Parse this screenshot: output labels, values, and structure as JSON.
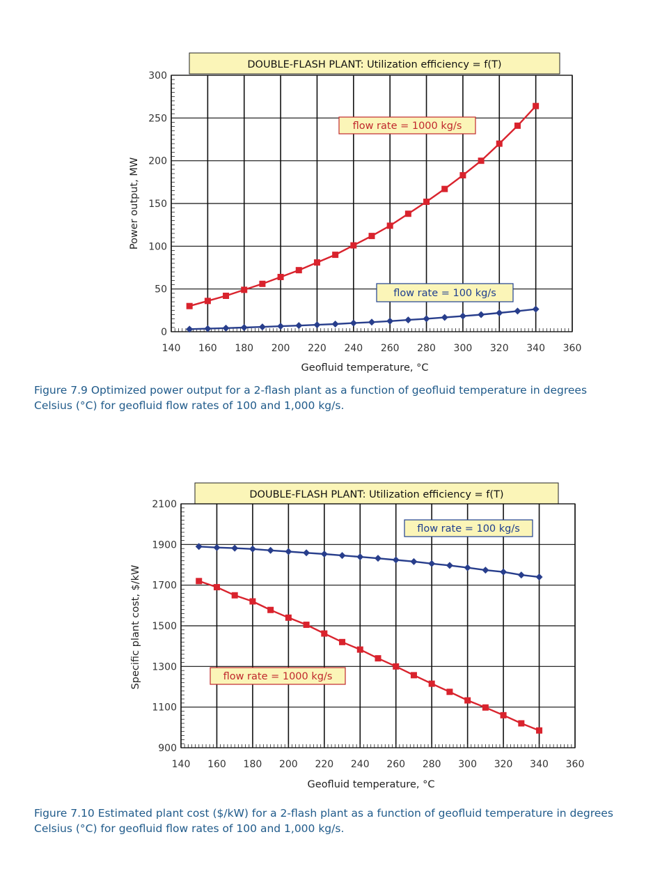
{
  "colors": {
    "red_series": "#d9232d",
    "blue_series": "#283e8c",
    "title_box_fill": "#fbf5b8",
    "label_box_fill": "#fbf5b8",
    "grid": "#111111",
    "caption": "#1f5a8a"
  },
  "chart_data": [
    {
      "type": "line",
      "title": "DOUBLE-FLASH PLANT: Utilization efficiency = f(T)",
      "xlabel": "Geofluid temperature, °C",
      "ylabel": "Power output, MW",
      "xlim": [
        140,
        360
      ],
      "ylim": [
        0,
        300
      ],
      "xticks": [
        140,
        160,
        180,
        200,
        220,
        240,
        260,
        280,
        300,
        320,
        340,
        360
      ],
      "yticks": [
        0,
        50,
        100,
        150,
        200,
        250,
        300
      ],
      "grid": true,
      "series": [
        {
          "name": "flow rate = 1000 kg/s",
          "marker": "square",
          "color": "#d9232d",
          "x": [
            150,
            160,
            170,
            180,
            190,
            200,
            210,
            220,
            230,
            240,
            250,
            260,
            270,
            280,
            290,
            300,
            310,
            320,
            330,
            340
          ],
          "y": [
            30,
            36,
            42,
            49,
            56,
            64,
            72,
            81,
            90,
            101,
            112,
            124,
            138,
            152,
            167,
            183,
            200,
            220,
            241,
            264
          ]
        },
        {
          "name": "flow rate = 100 kg/s",
          "marker": "diamond",
          "color": "#283e8c",
          "x": [
            150,
            160,
            170,
            180,
            190,
            200,
            210,
            220,
            230,
            240,
            250,
            260,
            270,
            280,
            290,
            300,
            310,
            320,
            330,
            340
          ],
          "y": [
            3,
            3.6,
            4.2,
            4.9,
            5.6,
            6.4,
            7.2,
            8.1,
            9.0,
            10.1,
            11.2,
            12.4,
            13.8,
            15.2,
            16.7,
            18.3,
            20.0,
            22.0,
            24.1,
            26.4
          ]
        }
      ]
    },
    {
      "type": "line",
      "title": "DOUBLE-FLASH PLANT: Utilization efficiency = f(T)",
      "xlabel": "Geofluid temperature, °C",
      "ylabel": "Specific plant cost, $/kW",
      "xlim": [
        140,
        360
      ],
      "ylim": [
        900,
        2100
      ],
      "xticks": [
        140,
        160,
        180,
        200,
        220,
        240,
        260,
        280,
        300,
        320,
        340,
        360
      ],
      "yticks": [
        900,
        1100,
        1300,
        1500,
        1700,
        1900,
        2100
      ],
      "grid": true,
      "series": [
        {
          "name": "flow rate = 100 kg/s",
          "marker": "diamond",
          "color": "#283e8c",
          "x": [
            150,
            160,
            170,
            180,
            190,
            200,
            210,
            220,
            230,
            240,
            250,
            260,
            270,
            280,
            290,
            300,
            310,
            320,
            330,
            340
          ],
          "y": [
            1890,
            1885,
            1882,
            1878,
            1871,
            1865,
            1859,
            1853,
            1846,
            1839,
            1832,
            1824,
            1816,
            1806,
            1797,
            1786,
            1774,
            1765,
            1750,
            1740
          ]
        },
        {
          "name": "flow rate = 1000 kg/s",
          "marker": "square",
          "color": "#d9232d",
          "x": [
            150,
            160,
            170,
            180,
            190,
            200,
            210,
            220,
            230,
            240,
            250,
            260,
            270,
            280,
            290,
            300,
            310,
            320,
            330,
            340
          ],
          "y": [
            1720,
            1690,
            1650,
            1620,
            1578,
            1540,
            1505,
            1462,
            1420,
            1383,
            1340,
            1300,
            1257,
            1215,
            1175,
            1133,
            1098,
            1060,
            1020,
            985
          ]
        }
      ]
    }
  ],
  "captions": {
    "fig1": "Figure 7.9 Optimized power output for a 2-flash plant as a function of geofluid temperature in degrees Celsius (°C) for geofluid flow rates of 100 and 1,000 kg/s.",
    "fig2": "Figure 7.10 Estimated plant cost ($/kW) for a 2-flash plant as a function of geofluid temperature in degrees Celsius (°C) for geofluid flow rates of 100 and 1,000 kg/s."
  }
}
